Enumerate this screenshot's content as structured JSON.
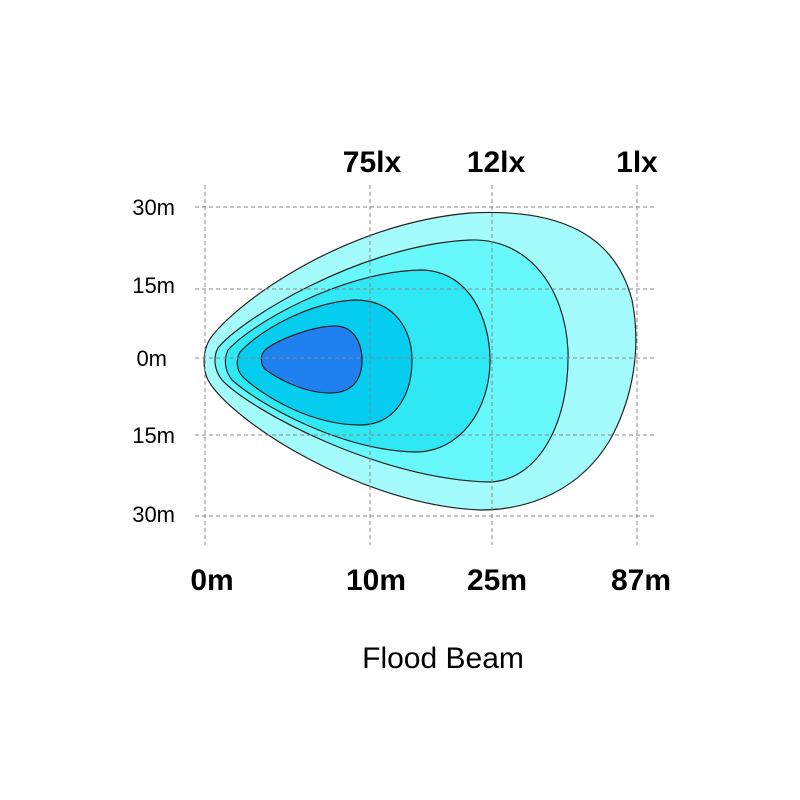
{
  "lux_labels": [
    "75lx",
    "12lx",
    "1lx"
  ],
  "y_labels": [
    "30m",
    "15m",
    "0m",
    "15m",
    "30m"
  ],
  "x_labels": [
    "0m",
    "10m",
    "25m",
    "87m"
  ],
  "caption": "Flood Beam"
}
